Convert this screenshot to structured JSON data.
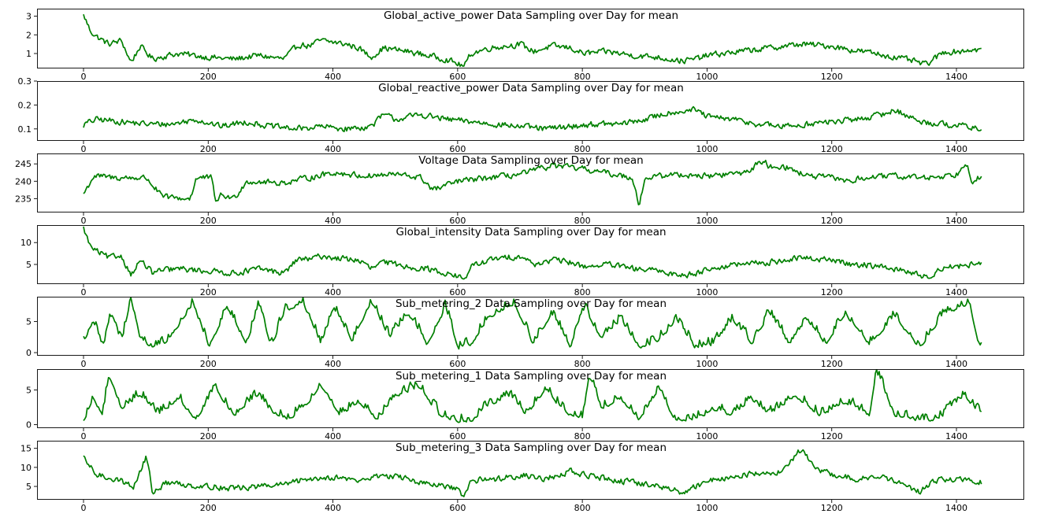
{
  "chart_data": [
    {
      "type": "line",
      "title": "Global_active_power Data Sampling over Day for mean",
      "xlim": [
        0,
        1440
      ],
      "ylim": [
        0.2,
        3.4
      ],
      "yticks": [
        1,
        2,
        3
      ],
      "xticks": [
        0,
        200,
        400,
        600,
        800,
        1000,
        1200,
        1400
      ],
      "color": "#008000",
      "x": [
        0,
        10,
        20,
        40,
        60,
        75,
        90,
        110,
        120,
        150,
        200,
        240,
        280,
        320,
        345,
        360,
        380,
        400,
        420,
        440,
        460,
        480,
        520,
        550,
        580,
        595,
        610,
        620,
        650,
        700,
        720,
        750,
        780,
        800,
        840,
        880,
        920,
        960,
        980,
        1000,
        1050,
        1100,
        1150,
        1200,
        1230,
        1250,
        1270,
        1300,
        1330,
        1350,
        1380,
        1400,
        1420,
        1440
      ],
      "y": [
        3.0,
        2.2,
        1.9,
        1.5,
        1.7,
        0.5,
        1.4,
        0.7,
        0.8,
        1.0,
        0.8,
        0.7,
        0.9,
        0.7,
        1.5,
        1.4,
        1.7,
        1.6,
        1.5,
        1.3,
        0.8,
        1.3,
        1.1,
        0.9,
        0.7,
        0.5,
        0.3,
        1.0,
        1.3,
        1.5,
        1.1,
        1.4,
        1.3,
        1.0,
        1.1,
        0.9,
        0.8,
        0.6,
        0.7,
        0.9,
        1.1,
        1.3,
        1.5,
        1.4,
        1.2,
        1.1,
        1.0,
        0.8,
        0.6,
        0.4,
        1.1,
        1.1,
        1.2,
        1.2
      ]
    },
    {
      "type": "line",
      "title": "Global_reactive_power Data Sampling over Day for mean",
      "xlim": [
        0,
        1440
      ],
      "ylim": [
        0.05,
        0.3
      ],
      "yticks": [
        0.1,
        0.2,
        0.3
      ],
      "xticks": [
        0,
        200,
        400,
        600,
        800,
        1000,
        1200,
        1400
      ],
      "color": "#008000",
      "x": [
        0,
        20,
        60,
        100,
        140,
        180,
        220,
        260,
        300,
        340,
        380,
        420,
        460,
        480,
        500,
        540,
        580,
        620,
        660,
        700,
        740,
        780,
        820,
        860,
        900,
        940,
        980,
        1000,
        1040,
        1080,
        1120,
        1160,
        1200,
        1240,
        1280,
        1300,
        1340,
        1380,
        1420,
        1440
      ],
      "y": [
        0.12,
        0.14,
        0.13,
        0.12,
        0.12,
        0.14,
        0.11,
        0.13,
        0.11,
        0.1,
        0.11,
        0.1,
        0.11,
        0.16,
        0.14,
        0.16,
        0.14,
        0.13,
        0.12,
        0.11,
        0.1,
        0.11,
        0.12,
        0.12,
        0.14,
        0.17,
        0.18,
        0.15,
        0.14,
        0.12,
        0.11,
        0.12,
        0.13,
        0.14,
        0.16,
        0.18,
        0.13,
        0.12,
        0.11,
        0.09
      ]
    },
    {
      "type": "line",
      "title": "Voltage Data Sampling over Day for mean",
      "xlim": [
        0,
        1440
      ],
      "ylim": [
        231,
        248
      ],
      "yticks": [
        235,
        240,
        245
      ],
      "xticks": [
        0,
        200,
        400,
        600,
        800,
        1000,
        1200,
        1400
      ],
      "color": "#008000",
      "x": [
        0,
        15,
        50,
        100,
        125,
        160,
        170,
        180,
        205,
        210,
        220,
        240,
        260,
        320,
        400,
        450,
        500,
        540,
        560,
        600,
        650,
        700,
        750,
        800,
        850,
        880,
        890,
        900,
        950,
        1000,
        1060,
        1090,
        1100,
        1120,
        1160,
        1200,
        1230,
        1250,
        1300,
        1350,
        1400,
        1415,
        1425,
        1430,
        1440
      ],
      "y": [
        236.5,
        241.5,
        241.0,
        241.0,
        235.5,
        235.0,
        235.0,
        241.0,
        241.0,
        234.0,
        236.0,
        235.0,
        240.0,
        239.5,
        242.5,
        241.5,
        242.0,
        241.0,
        237.5,
        240.0,
        241.0,
        242.0,
        244.5,
        243.5,
        242.0,
        241.0,
        233.0,
        241.0,
        242.0,
        241.5,
        242.5,
        246.0,
        244.0,
        244.5,
        241.5,
        241.0,
        240.0,
        241.0,
        241.5,
        241.0,
        242.0,
        246.0,
        239.5,
        241.0,
        241.0
      ]
    },
    {
      "type": "line",
      "title": "Global_intensity Data Sampling over Day for mean",
      "xlim": [
        0,
        1440
      ],
      "ylim": [
        0.5,
        14
      ],
      "yticks": [
        5,
        10
      ],
      "xticks": [
        0,
        200,
        400,
        600,
        800,
        1000,
        1200,
        1400
      ],
      "color": "#008000",
      "x": [
        0,
        10,
        20,
        40,
        60,
        75,
        90,
        110,
        120,
        150,
        200,
        240,
        280,
        320,
        345,
        360,
        380,
        400,
        440,
        460,
        480,
        520,
        550,
        580,
        595,
        610,
        620,
        650,
        700,
        720,
        750,
        780,
        800,
        840,
        880,
        920,
        960,
        980,
        1000,
        1050,
        1100,
        1150,
        1200,
        1230,
        1250,
        1300,
        1330,
        1350,
        1380,
        1400,
        1420,
        1440
      ],
      "y": [
        13.0,
        9.0,
        8.0,
        6.5,
        7.0,
        2.5,
        6.0,
        3.0,
        3.5,
        4.0,
        3.5,
        3.0,
        4.0,
        3.0,
        6.5,
        6.0,
        7.0,
        6.5,
        6.0,
        4.0,
        5.5,
        4.5,
        4.0,
        3.0,
        2.5,
        1.5,
        4.5,
        6.0,
        7.0,
        5.0,
        6.0,
        5.5,
        4.5,
        5.0,
        4.0,
        3.5,
        2.5,
        3.0,
        4.0,
        5.0,
        5.5,
        6.5,
        6.0,
        5.0,
        5.0,
        4.0,
        3.0,
        2.0,
        4.5,
        4.5,
        5.0,
        5.0
      ]
    },
    {
      "type": "line",
      "title": "Sub_metering_2 Data Sampling over Day for mean",
      "xlim": [
        0,
        1440
      ],
      "ylim": [
        -0.5,
        9
      ],
      "yticks": [
        0,
        5
      ],
      "xticks": [
        0,
        200,
        400,
        600,
        800,
        1000,
        1200,
        1400
      ],
      "color": "#008000",
      "x": [
        0,
        15,
        30,
        45,
        60,
        75,
        90,
        110,
        130,
        150,
        175,
        200,
        230,
        260,
        280,
        300,
        320,
        350,
        380,
        400,
        430,
        460,
        490,
        520,
        550,
        580,
        600,
        620,
        650,
        690,
        720,
        750,
        780,
        800,
        830,
        860,
        890,
        920,
        950,
        980,
        1010,
        1040,
        1070,
        1100,
        1130,
        1160,
        1190,
        1220,
        1260,
        1300,
        1340,
        1380,
        1420,
        1435,
        1440
      ],
      "y": [
        1.5,
        5.0,
        0.5,
        6.0,
        1.0,
        8.5,
        2.0,
        0.5,
        1.0,
        4.0,
        7.5,
        0.5,
        7.0,
        1.0,
        7.5,
        0.5,
        6.0,
        8.0,
        1.0,
        7.0,
        1.5,
        8.0,
        2.0,
        6.0,
        1.0,
        7.0,
        0.3,
        1.0,
        5.5,
        7.5,
        1.0,
        6.0,
        0.5,
        7.0,
        2.0,
        5.0,
        0.5,
        1.5,
        5.0,
        0.5,
        1.0,
        5.0,
        1.0,
        6.0,
        1.0,
        5.0,
        1.0,
        6.0,
        1.0,
        5.5,
        0.5,
        6.0,
        7.5,
        0.8,
        1.0
      ]
    },
    {
      "type": "line",
      "title": "Sub_metering_1 Data Sampling over Day for mean",
      "xlim": [
        0,
        1440
      ],
      "ylim": [
        -0.5,
        8
      ],
      "yticks": [
        0,
        5
      ],
      "xticks": [
        0,
        200,
        400,
        600,
        800,
        1000,
        1200,
        1400
      ],
      "color": "#008000",
      "x": [
        0,
        15,
        30,
        40,
        60,
        90,
        120,
        150,
        180,
        210,
        240,
        280,
        300,
        330,
        360,
        380,
        410,
        440,
        470,
        500,
        540,
        570,
        600,
        620,
        650,
        680,
        710,
        740,
        770,
        800,
        810,
        830,
        860,
        890,
        920,
        950,
        980,
        1010,
        1040,
        1070,
        1100,
        1140,
        1180,
        1220,
        1260,
        1270,
        1300,
        1330,
        1350,
        1380,
        1410,
        1440
      ],
      "y": [
        0.5,
        3.5,
        1.0,
        7.0,
        2.0,
        4.0,
        1.0,
        3.5,
        0.5,
        5.0,
        1.0,
        4.0,
        1.5,
        0.5,
        3.0,
        5.5,
        1.0,
        3.0,
        0.5,
        4.0,
        5.0,
        1.0,
        0.2,
        0.2,
        2.5,
        4.0,
        1.0,
        5.0,
        1.5,
        0.5,
        7.0,
        2.0,
        3.5,
        0.5,
        4.5,
        0.3,
        0.5,
        2.0,
        1.0,
        3.5,
        1.0,
        4.0,
        1.0,
        3.0,
        1.0,
        7.5,
        1.0,
        0.5,
        0.2,
        1.0,
        4.0,
        1.0
      ]
    },
    {
      "type": "line",
      "title": "Sub_metering_3 Data Sampling over Day for mean",
      "xlim": [
        0,
        1440
      ],
      "ylim": [
        1.5,
        17
      ],
      "yticks": [
        5,
        10,
        15
      ],
      "xticks": [
        0,
        200,
        400,
        600,
        800,
        1000,
        1200,
        1400
      ],
      "color": "#008000",
      "x": [
        0,
        20,
        50,
        80,
        100,
        110,
        130,
        160,
        200,
        240,
        280,
        320,
        360,
        400,
        440,
        480,
        520,
        550,
        580,
        600,
        610,
        620,
        660,
        700,
        740,
        780,
        800,
        840,
        880,
        920,
        960,
        1000,
        1040,
        1080,
        1120,
        1150,
        1170,
        1200,
        1240,
        1280,
        1320,
        1340,
        1360,
        1400,
        1440
      ],
      "y": [
        12.0,
        8.0,
        7.0,
        5.0,
        13.0,
        3.0,
        6.0,
        5.5,
        5.0,
        4.5,
        5.0,
        5.5,
        7.0,
        7.5,
        6.5,
        8.0,
        7.0,
        5.5,
        5.0,
        4.0,
        2.0,
        6.5,
        7.0,
        8.0,
        7.0,
        9.0,
        8.0,
        7.0,
        6.0,
        5.0,
        3.5,
        6.5,
        7.5,
        8.5,
        9.0,
        15.0,
        10.0,
        8.0,
        7.0,
        7.5,
        5.0,
        3.5,
        6.5,
        7.0,
        6.0
      ]
    }
  ]
}
